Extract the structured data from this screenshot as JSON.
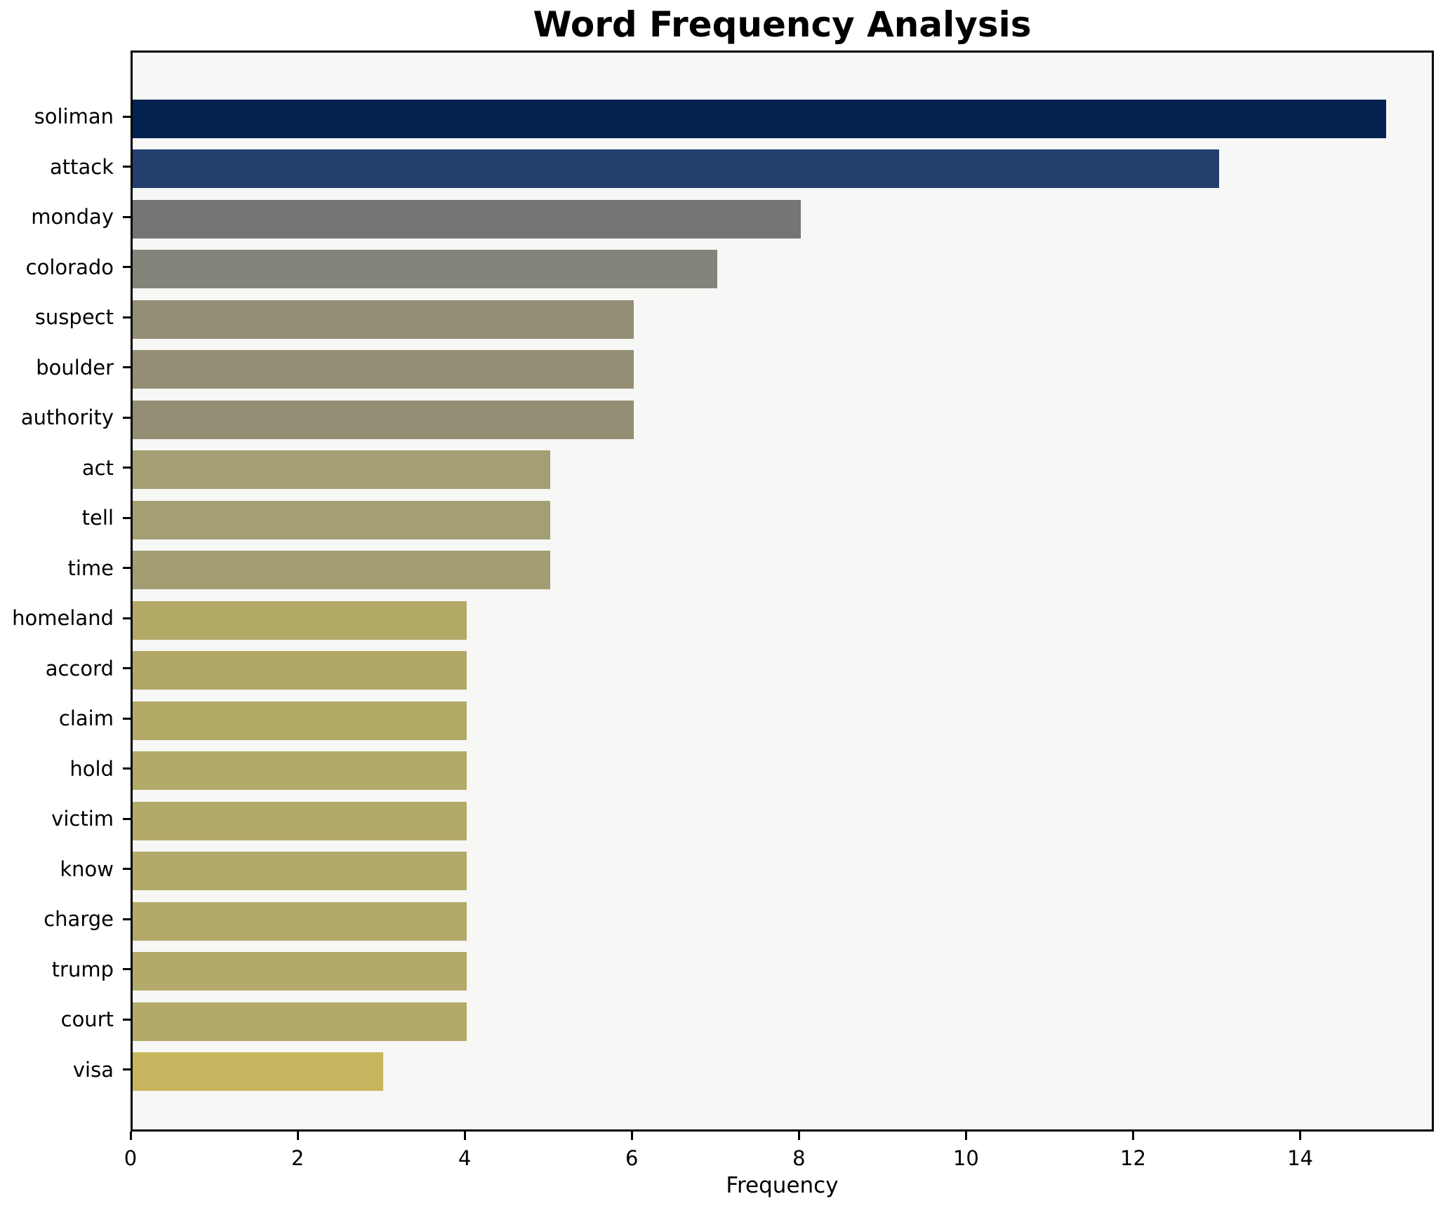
{
  "chart_data": {
    "type": "bar",
    "orientation": "horizontal",
    "title": "Word Frequency Analysis",
    "xlabel": "Frequency",
    "ylabel": "",
    "xlim": [
      0,
      15.6
    ],
    "grid": false,
    "legend": "none",
    "x_ticks": [
      0,
      2,
      4,
      6,
      8,
      10,
      12,
      14
    ],
    "categories": [
      "soliman",
      "attack",
      "monday",
      "colorado",
      "suspect",
      "boulder",
      "authority",
      "act",
      "tell",
      "time",
      "homeland",
      "accord",
      "claim",
      "hold",
      "victim",
      "know",
      "charge",
      "trump",
      "court",
      "visa"
    ],
    "values": [
      15,
      13,
      8,
      7,
      6,
      6,
      6,
      5,
      5,
      5,
      4,
      4,
      4,
      4,
      4,
      4,
      4,
      4,
      4,
      3
    ],
    "bar_colors": [
      "#04224f",
      "#243e6e",
      "#757575",
      "#84847a",
      "#938e75",
      "#948e74",
      "#928d73",
      "#a59e73",
      "#a49e74",
      "#a39d73",
      "#b3a967",
      "#b1a867",
      "#b2a966",
      "#b3aa69",
      "#b3aa69",
      "#b3aa69",
      "#b3aa69",
      "#b3aa69",
      "#b3aa69",
      "#c7b65f"
    ]
  },
  "colors": {
    "figure_bg": "#ffffff",
    "plot_bg": "#f7f7f6",
    "axis": "#000000",
    "text": "#000000"
  }
}
